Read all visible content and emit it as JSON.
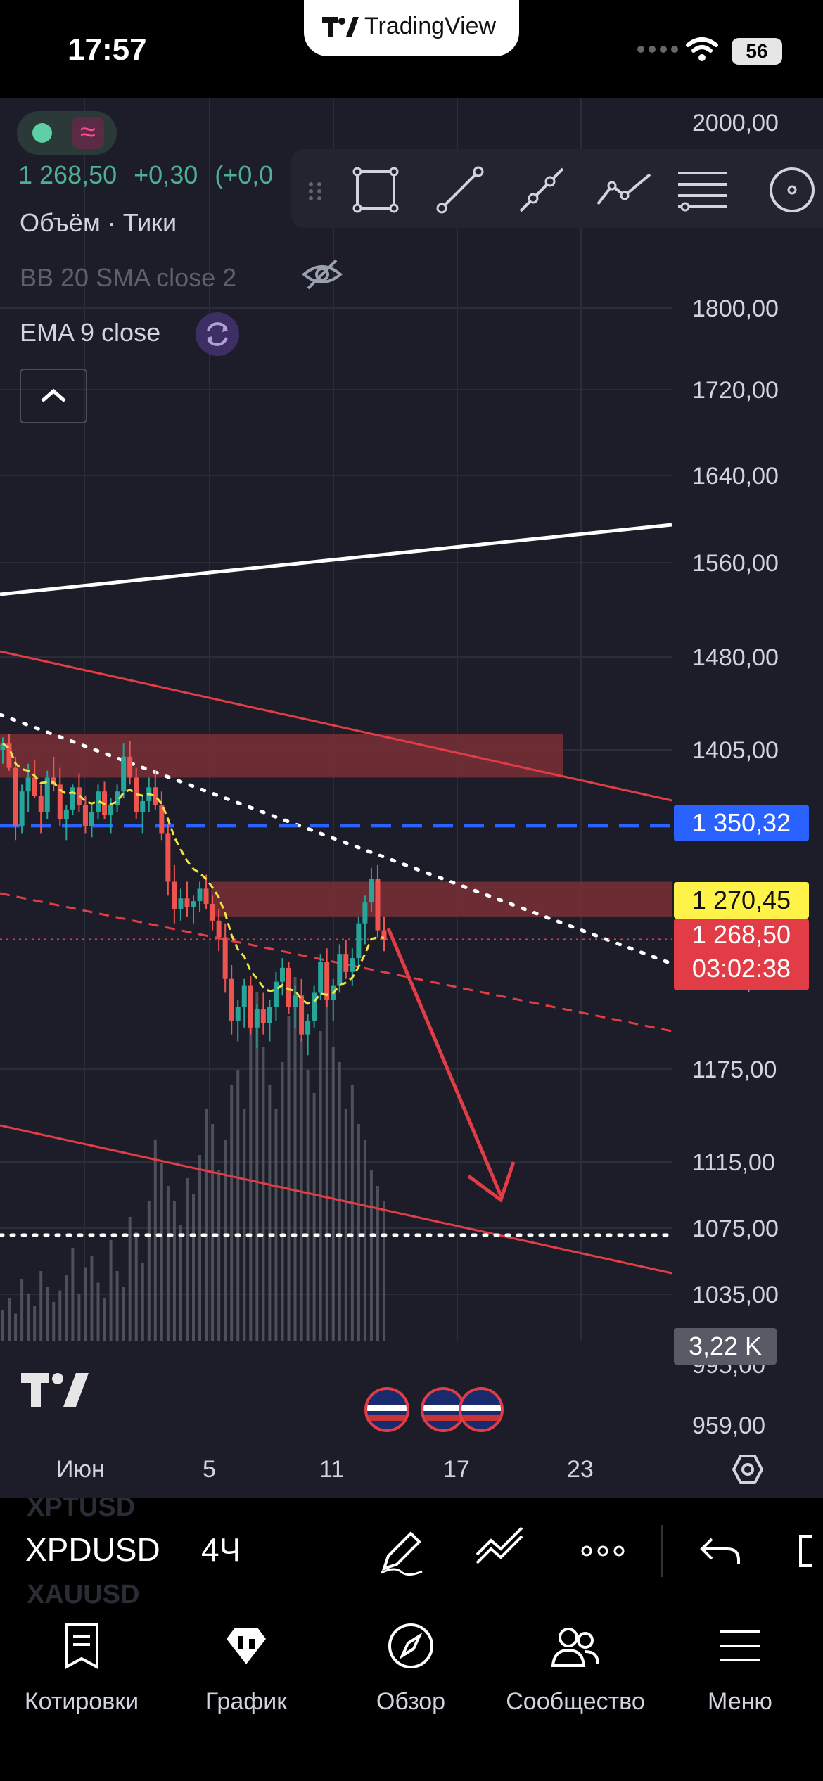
{
  "status_bar": {
    "time": "17:57",
    "battery": "56"
  },
  "brand": "TradingView",
  "legend": {
    "last_price": "1 268,50",
    "change": "+0,30",
    "change_pct": "(+0,0",
    "volume_row": "Объём · Тики",
    "bb_row": "BB 20 SMA close 2",
    "ema_row": "EMA 9 close"
  },
  "drawing_toolbar": [
    "drag-handle-icon",
    "rectangle-icon",
    "trend-line-icon",
    "ray-icon",
    "path-icon",
    "fib-retracement-icon",
    "circle-icon"
  ],
  "price_axis": {
    "labels": [
      "2000,00",
      "1800,00",
      "1720,00",
      "1640,00",
      "1560,00",
      "1480,00",
      "1405,00",
      "1175,00",
      "1115,00",
      "1075,00",
      "1035,00",
      "995,00",
      "959,00"
    ],
    "partial_label": "1235,00"
  },
  "price_tags": {
    "blue_line": "1 350,32",
    "yellow_line": "1 270,45",
    "current_price": "1 268,50",
    "countdown": "03:02:38",
    "volume": "3,22 K"
  },
  "time_axis": {
    "labels": [
      "Июн",
      "5",
      "11",
      "17",
      "23"
    ]
  },
  "symbol_bar": {
    "prev_symbol": "XPTUSD",
    "current_symbol": "XPDUSD",
    "next_symbol": "XAUUSD",
    "interval": "4Ч"
  },
  "tabs": [
    {
      "label": "Котировки",
      "icon": "quotes-icon"
    },
    {
      "label": "График",
      "icon": "chart-icon"
    },
    {
      "label": "Обзор",
      "icon": "compass-icon"
    },
    {
      "label": "Сообщество",
      "icon": "community-icon"
    },
    {
      "label": "Меню",
      "icon": "menu-icon"
    }
  ],
  "colors": {
    "background": "#1c1d28",
    "up": "#26a69a",
    "down": "#ef5350",
    "zone": "#7a2f35",
    "blue_line": "#2962ff",
    "ema": "#f0e442"
  },
  "chart_data": {
    "type": "candlestick",
    "symbol": "XPDUSD",
    "interval": "4Ч",
    "ylim": [
      959,
      2000
    ],
    "x_tick_labels": [
      "Июн",
      "5",
      "11",
      "17",
      "23"
    ],
    "last_price": 1268.5,
    "horizontal_levels": [
      {
        "price": 1350.32,
        "style": "dashed",
        "color": "#2962ff"
      },
      {
        "price": 1270.45,
        "style": "solid",
        "color": "#f0e442"
      },
      {
        "price": 1268.5,
        "style": "dotted",
        "color": "#ef5350"
      },
      {
        "price": 1072,
        "style": "dotted",
        "color": "#ffffff"
      }
    ],
    "zones": [
      {
        "from": 1385,
        "to": 1418,
        "color": "#7a2f35"
      },
      {
        "from": 1285,
        "to": 1310,
        "color": "#7a2f35"
      }
    ],
    "candles": [
      [
        1405,
        1415,
        1395,
        1410
      ],
      [
        1410,
        1418,
        1390,
        1392
      ],
      [
        1392,
        1400,
        1340,
        1350
      ],
      [
        1350,
        1380,
        1345,
        1375
      ],
      [
        1375,
        1395,
        1360,
        1385
      ],
      [
        1385,
        1398,
        1370,
        1372
      ],
      [
        1372,
        1380,
        1345,
        1360
      ],
      [
        1360,
        1390,
        1355,
        1385
      ],
      [
        1385,
        1400,
        1375,
        1380
      ],
      [
        1380,
        1392,
        1350,
        1355
      ],
      [
        1355,
        1365,
        1340,
        1362
      ],
      [
        1362,
        1380,
        1358,
        1378
      ],
      [
        1378,
        1388,
        1360,
        1365
      ],
      [
        1365,
        1372,
        1345,
        1350
      ],
      [
        1350,
        1365,
        1342,
        1360
      ],
      [
        1360,
        1380,
        1355,
        1375
      ],
      [
        1375,
        1382,
        1355,
        1358
      ],
      [
        1358,
        1370,
        1345,
        1365
      ],
      [
        1365,
        1380,
        1360,
        1375
      ],
      [
        1375,
        1410,
        1370,
        1400
      ],
      [
        1400,
        1412,
        1380,
        1385
      ],
      [
        1385,
        1392,
        1355,
        1360
      ],
      [
        1360,
        1372,
        1345,
        1368
      ],
      [
        1368,
        1385,
        1360,
        1378
      ],
      [
        1378,
        1390,
        1362,
        1365
      ],
      [
        1365,
        1375,
        1340,
        1345
      ],
      [
        1345,
        1352,
        1300,
        1310
      ],
      [
        1310,
        1322,
        1280,
        1290
      ],
      [
        1290,
        1305,
        1282,
        1298
      ],
      [
        1298,
        1310,
        1285,
        1292
      ],
      [
        1292,
        1300,
        1280,
        1296
      ],
      [
        1296,
        1310,
        1288,
        1305
      ],
      [
        1305,
        1315,
        1290,
        1294
      ],
      [
        1294,
        1300,
        1275,
        1282
      ],
      [
        1282,
        1290,
        1260,
        1270
      ],
      [
        1270,
        1280,
        1230,
        1240
      ],
      [
        1240,
        1250,
        1200,
        1210
      ],
      [
        1210,
        1225,
        1195,
        1220
      ],
      [
        1220,
        1240,
        1205,
        1235
      ],
      [
        1235,
        1242,
        1200,
        1205
      ],
      [
        1205,
        1222,
        1190,
        1218
      ],
      [
        1218,
        1230,
        1200,
        1208
      ],
      [
        1208,
        1225,
        1195,
        1220
      ],
      [
        1220,
        1245,
        1210,
        1238
      ],
      [
        1238,
        1255,
        1228,
        1248
      ],
      [
        1248,
        1252,
        1215,
        1220
      ],
      [
        1220,
        1235,
        1205,
        1228
      ],
      [
        1228,
        1240,
        1195,
        1200
      ],
      [
        1200,
        1215,
        1185,
        1210
      ],
      [
        1210,
        1235,
        1205,
        1230
      ],
      [
        1230,
        1258,
        1225,
        1252
      ],
      [
        1252,
        1262,
        1220,
        1225
      ],
      [
        1225,
        1240,
        1210,
        1235
      ],
      [
        1235,
        1265,
        1230,
        1258
      ],
      [
        1258,
        1268,
        1240,
        1245
      ],
      [
        1245,
        1262,
        1235,
        1255
      ],
      [
        1255,
        1285,
        1250,
        1280
      ],
      [
        1280,
        1300,
        1265,
        1295
      ],
      [
        1295,
        1320,
        1288,
        1312
      ],
      [
        1312,
        1322,
        1270,
        1275
      ],
      [
        1275,
        1285,
        1260,
        1268
      ]
    ]
  }
}
